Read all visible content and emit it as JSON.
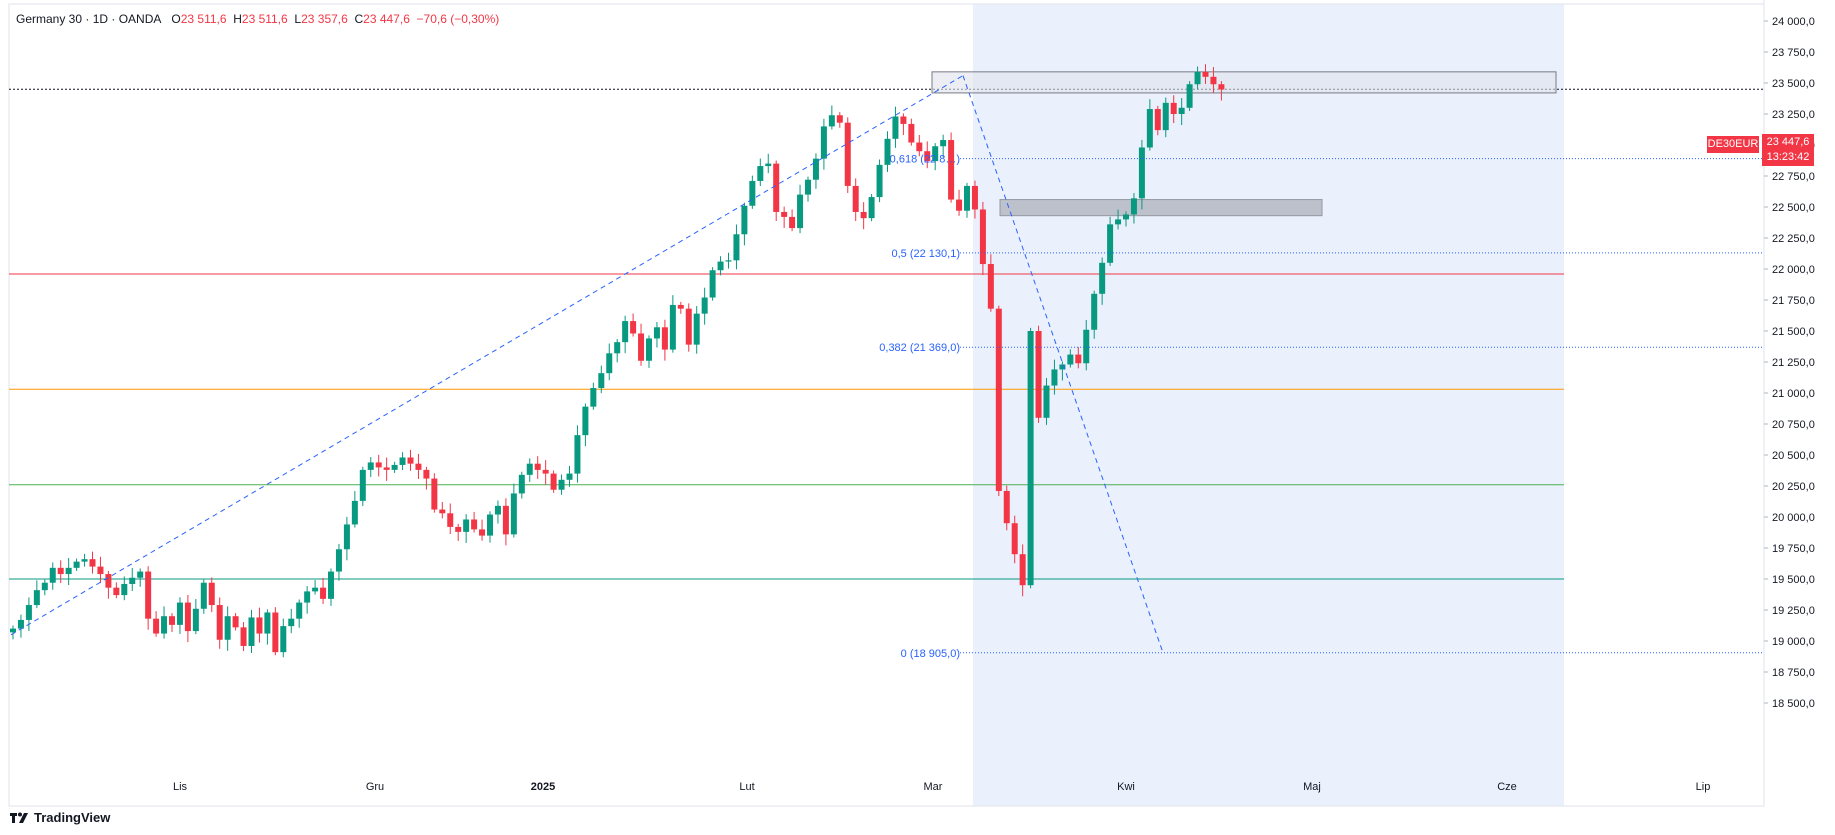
{
  "header": {
    "symbol_line": "Germany 30 · 1D · OANDA",
    "o_label": "O",
    "o_value": "23 511,6",
    "h_label": "H",
    "h_value": "23 511,6",
    "l_label": "L",
    "l_value": "23 357,6",
    "c_label": "C",
    "c_value": "23 447,6",
    "change": "−70,6 (−0,30%)"
  },
  "price_tag": {
    "symbol": "DE30EUR",
    "price": "23 447,6",
    "countdown": "13:23:42"
  },
  "brand": "TradingView",
  "colors": {
    "up": "#089981",
    "down": "#f23645",
    "fib_line": "#2962ff",
    "shade": "#eaf0fc"
  },
  "chart_data": {
    "type": "candlestick",
    "ylim": [
      18300,
      24600
    ],
    "y_ticks": [
      "24 500,0",
      "24 250,0",
      "24 000,0",
      "23 750,0",
      "23 500,0",
      "23 250,0",
      "23 000,0",
      "22 750,0",
      "22 500,0",
      "22 250,0",
      "22 000,0",
      "21 750,0",
      "21 500,0",
      "21 250,0",
      "21 000,0",
      "20 750,0",
      "20 500,0",
      "20 250,0",
      "20 000,0",
      "19 750,0",
      "19 500,0",
      "19 250,0",
      "19 000,0",
      "18 750,0",
      "18 500,0"
    ],
    "x_labels": [
      "Lis",
      "Gru",
      "2025",
      "Lut",
      "Mar",
      "Kwi",
      "Maj",
      "Cze",
      "Lip"
    ],
    "fib_labels": [
      {
        "text": "0,618 (22 8…)",
        "value": 22890
      },
      {
        "text": "0,5 (22 130,1)",
        "value": 22130
      },
      {
        "text": "0,382 (21 369,0)",
        "value": 21369
      },
      {
        "text": "0 (18 905,0)",
        "value": 18905
      }
    ],
    "levels": [
      {
        "value": 21960,
        "color": "#f23645"
      },
      {
        "value": 21030,
        "color": "#ff9800"
      },
      {
        "value": 20260,
        "color": "#4caf50"
      },
      {
        "value": 19500,
        "color": "#089981"
      },
      {
        "value": 23450,
        "color": "#131722"
      }
    ],
    "closes": [
      19100,
      19170,
      19290,
      19410,
      19470,
      19590,
      19540,
      19590,
      19640,
      19660,
      19600,
      19540,
      19430,
      19370,
      19460,
      19510,
      19560,
      19180,
      19060,
      19200,
      19130,
      19310,
      19080,
      19260,
      19470,
      19290,
      19010,
      19200,
      19110,
      18960,
      19190,
      19060,
      19230,
      18910,
      19120,
      19180,
      19310,
      19400,
      19430,
      19340,
      19560,
      19740,
      19940,
      20130,
      20380,
      20440,
      20400,
      20380,
      20420,
      20480,
      20430,
      20380,
      20310,
      20060,
      20030,
      19920,
      19880,
      19980,
      19900,
      19850,
      20020,
      20090,
      19860,
      20190,
      20340,
      20430,
      20380,
      20350,
      20220,
      20300,
      20350,
      20660,
      20890,
      21040,
      21160,
      21320,
      21410,
      21580,
      21480,
      21260,
      21440,
      21530,
      21350,
      21710,
      21680,
      21390,
      21640,
      21770,
      21990,
      22060,
      22070,
      22280,
      22510,
      22710,
      22830,
      22850,
      22460,
      22420,
      22330,
      22600,
      22720,
      22890,
      23150,
      23240,
      23180,
      22670,
      22460,
      22410,
      22580,
      22840,
      23050,
      23230,
      23170,
      23020,
      22950,
      22870,
      22990,
      23040,
      22560,
      22470,
      22670,
      22480,
      22040,
      21680,
      20210,
      19950,
      19700,
      19450,
      21500,
      20800,
      21060,
      21190,
      21230,
      21310,
      21240,
      21510,
      21800,
      22050,
      22360,
      22400,
      22440,
      22570,
      22980,
      23290,
      23120,
      23340,
      23250,
      23300,
      23490,
      23590,
      23550,
      23490,
      23447.6
    ]
  }
}
